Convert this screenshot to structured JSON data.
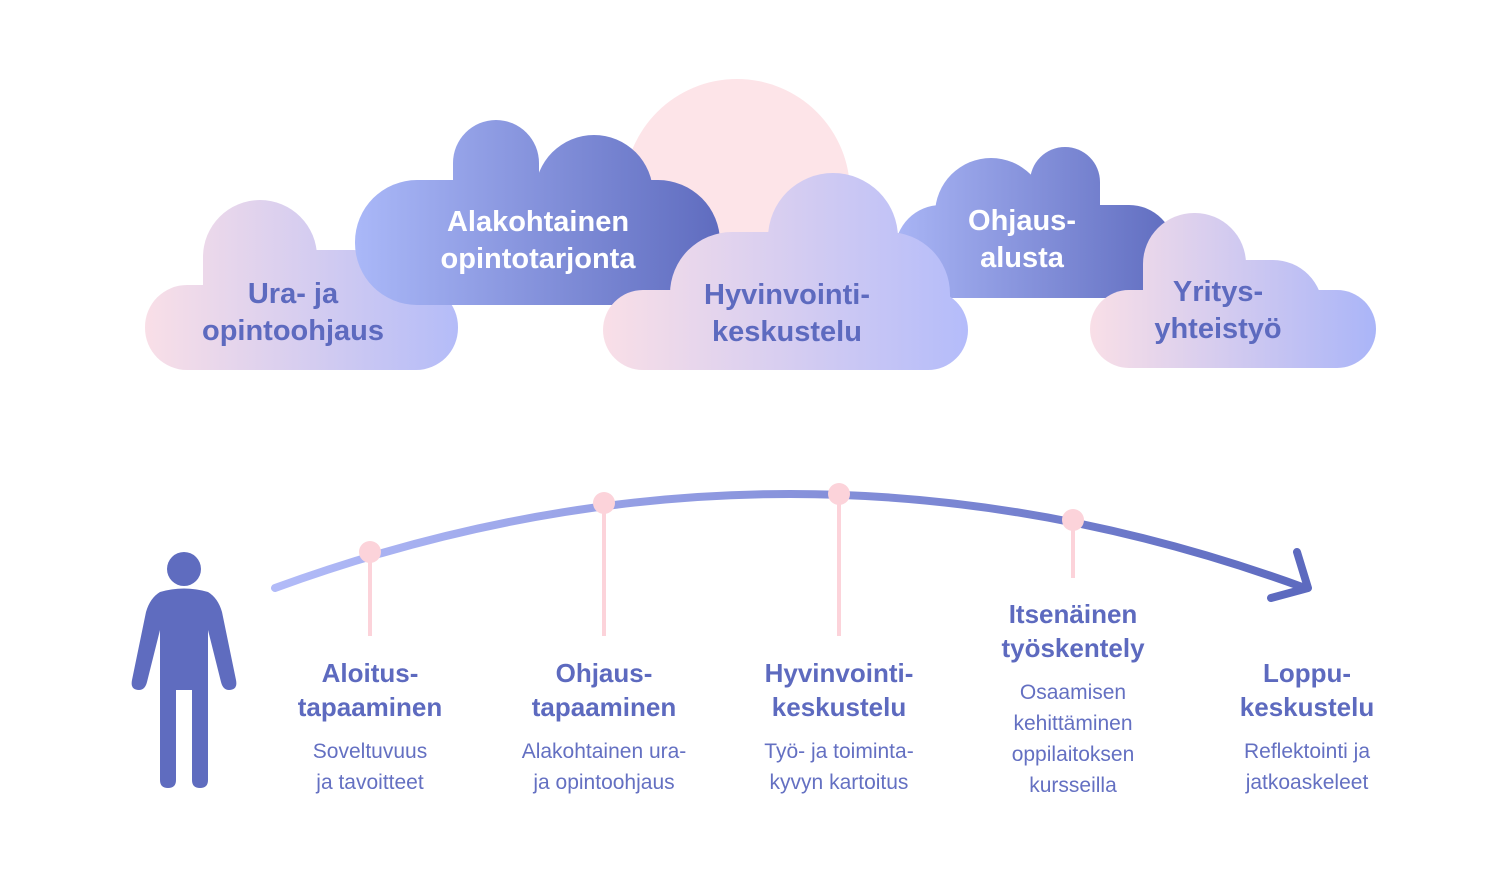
{
  "colors": {
    "primary": "#5d6abf",
    "pink": "#fcd3da",
    "sun": "#fde4e8",
    "light": "#b3bbf8"
  },
  "clouds": [
    {
      "lines": [
        "Ura- ja",
        "opintoohjaus"
      ]
    },
    {
      "lines": [
        "Alakohtainen",
        "opintotarjonta"
      ]
    },
    {
      "lines": [
        "Hyvinvointi-",
        "keskustelu"
      ]
    },
    {
      "lines": [
        "Ohjaus-",
        "alusta"
      ]
    },
    {
      "lines": [
        "Yritys-",
        "yhteistyö"
      ]
    }
  ],
  "steps": [
    {
      "title": [
        "Aloitus-",
        "tapaaminen"
      ],
      "desc": [
        "Soveltuvuus",
        "ja tavoitteet"
      ]
    },
    {
      "title": [
        "Ohjaus-",
        "tapaaminen"
      ],
      "desc": [
        "Alakohtainen ura-",
        "ja opintoohjaus"
      ]
    },
    {
      "title": [
        "Hyvinvointi-",
        "keskustelu"
      ],
      "desc": [
        "Työ- ja toiminta-",
        "kyvyn kartoitus"
      ]
    },
    {
      "title": [
        "Itsenäinen",
        "työskentely"
      ],
      "desc": [
        "Osaamisen",
        "kehittäminen",
        "oppilaitoksen",
        "kursseilla"
      ]
    },
    {
      "title": [
        "Loppu-",
        "keskustelu"
      ],
      "desc": [
        "Reflektointi ja",
        "jatkoaskeleet"
      ]
    }
  ],
  "icons": {
    "person": "person-icon",
    "arrow": "arrow-right-icon"
  }
}
